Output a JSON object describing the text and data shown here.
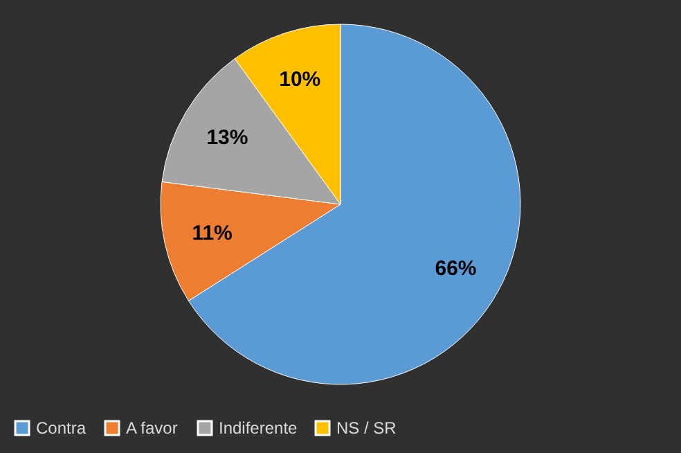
{
  "chart_data": {
    "type": "pie",
    "categories": [
      "Contra",
      "A favor",
      "Indiferente",
      "NS / SR"
    ],
    "values": [
      66,
      11,
      13,
      10
    ],
    "colors": [
      "#5b9bd5",
      "#ed7d31",
      "#a5a5a5",
      "#ffc000"
    ],
    "value_labels": [
      "66%",
      "11%",
      "13%",
      "10%"
    ],
    "legend": "bottom"
  }
}
